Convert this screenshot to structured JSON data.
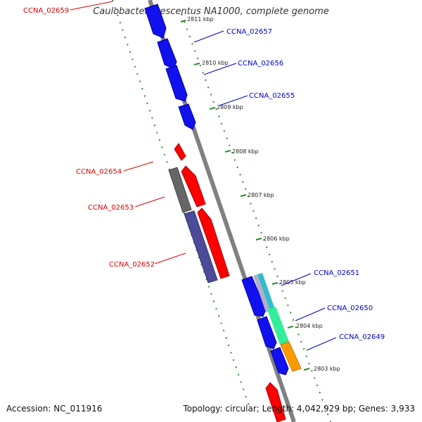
{
  "title": "Caulobacter crescentus NA1000, complete genome",
  "footer": {
    "accession": "Accession: NC_011916",
    "topology": "Topology: circular; Length: 4,042,929 bp; Genes: 3,933"
  },
  "ruler_labels": [
    {
      "text": "2811 kbp"
    },
    {
      "text": "2810 kbp"
    },
    {
      "text": "2809 kbp"
    },
    {
      "text": "2808 kbp"
    },
    {
      "text": "2807 kbp"
    },
    {
      "text": "2806 kbp"
    },
    {
      "text": "2805 kbp"
    },
    {
      "text": "2804 kbp"
    },
    {
      "text": "2803 kbp"
    }
  ],
  "gene_labels": [
    {
      "text": "CCNA_02659",
      "strand": "reverse"
    },
    {
      "text": "CCNA_02657",
      "strand": "forward"
    },
    {
      "text": "CCNA_02656",
      "strand": "forward"
    },
    {
      "text": "CCNA_02655",
      "strand": "forward"
    },
    {
      "text": "CCNA_02654",
      "strand": "reverse"
    },
    {
      "text": "CCNA_02653",
      "strand": "reverse"
    },
    {
      "text": "CCNA_02652",
      "strand": "reverse"
    },
    {
      "text": "CCNA_02651",
      "strand": "forward"
    },
    {
      "text": "CCNA_02650",
      "strand": "forward"
    },
    {
      "text": "CCNA_02649",
      "strand": "forward"
    }
  ],
  "colors": {
    "forward": "#0000cc",
    "forward_fill": "#1111ee",
    "reverse": "#dd0000",
    "reverse_fill": "#ff0000",
    "backbone": "#808080",
    "ruler": "#2e8b2e",
    "gray_feature": "#666666",
    "purple_feature": "#4b4b99",
    "cyan_feature": "#33bbcc",
    "green_feature": "#33ee99",
    "orange_feature": "#ff9900",
    "silver_feature": "#b0b0c8"
  }
}
